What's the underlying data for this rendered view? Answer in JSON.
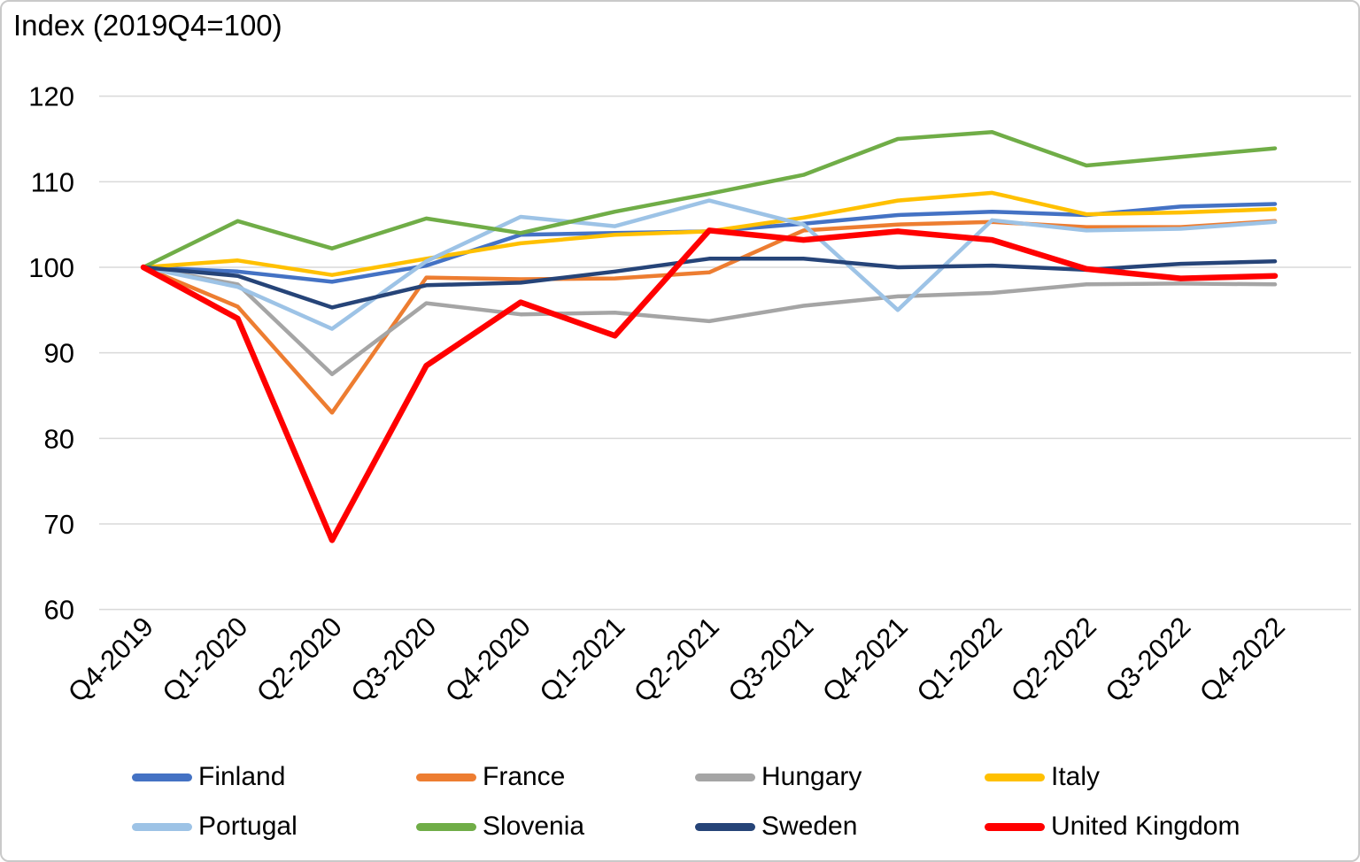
{
  "chart_data": {
    "type": "line",
    "title": "Index (2019Q4=100)",
    "categories": [
      "Q4-2019",
      "Q1-2020",
      "Q2-2020",
      "Q3-2020",
      "Q4-2020",
      "Q1-2021",
      "Q2-2021",
      "Q3-2021",
      "Q4-2021",
      "Q1-2022",
      "Q2-2022",
      "Q3-2022",
      "Q4-2022"
    ],
    "ylim": [
      60,
      120
    ],
    "yticks": [
      60,
      70,
      80,
      90,
      100,
      110,
      120
    ],
    "grid": true,
    "legend_position": "bottom",
    "series": [
      {
        "name": "Finland",
        "color": "#4472C4",
        "line_width": 4.5,
        "values": [
          100,
          99.5,
          98.3,
          100.2,
          103.8,
          104.0,
          104.2,
          105.1,
          106.1,
          106.5,
          106.1,
          107.1,
          107.4
        ]
      },
      {
        "name": "France",
        "color": "#ED7D31",
        "line_width": 4.5,
        "values": [
          100,
          95.4,
          83.0,
          98.8,
          98.6,
          98.7,
          99.4,
          104.3,
          105.0,
          105.3,
          104.7,
          104.7,
          105.4
        ]
      },
      {
        "name": "Hungary",
        "color": "#A5A5A5",
        "line_width": 4.5,
        "values": [
          100,
          98.0,
          87.5,
          95.8,
          94.5,
          94.7,
          93.7,
          95.5,
          96.6,
          97.0,
          98.0,
          98.1,
          98.0
        ]
      },
      {
        "name": "Italy",
        "color": "#FFC000",
        "line_width": 4.5,
        "values": [
          100,
          100.8,
          99.1,
          101.0,
          102.8,
          103.8,
          104.2,
          105.8,
          107.8,
          108.7,
          106.2,
          106.4,
          106.8
        ]
      },
      {
        "name": "Portugal",
        "color": "#9DC3E6",
        "line_width": 4.5,
        "values": [
          100,
          97.7,
          92.8,
          100.7,
          105.9,
          104.8,
          107.8,
          105.0,
          95.0,
          105.5,
          104.3,
          104.5,
          105.3
        ]
      },
      {
        "name": "Slovenia",
        "color": "#70AD47",
        "line_width": 4.5,
        "values": [
          100,
          105.4,
          102.2,
          105.7,
          104.0,
          106.5,
          108.6,
          110.8,
          115.0,
          115.8,
          111.9,
          112.9,
          113.9
        ]
      },
      {
        "name": "Sweden",
        "color": "#264478",
        "line_width": 4.5,
        "values": [
          100,
          99.0,
          95.3,
          97.9,
          98.2,
          99.5,
          101.0,
          101.0,
          100.0,
          100.2,
          99.7,
          100.4,
          100.7
        ]
      },
      {
        "name": "United Kingdom",
        "color": "#FF0000",
        "line_width": 6.5,
        "values": [
          100,
          94.0,
          68.1,
          88.5,
          95.9,
          92.0,
          104.3,
          103.2,
          104.2,
          103.2,
          99.8,
          98.7,
          99.0
        ]
      }
    ],
    "legend": {
      "rows": [
        [
          "Finland",
          "France",
          "Hungary",
          "Italy"
        ],
        [
          "Portugal",
          "Slovenia",
          "Sweden",
          "United Kingdom"
        ]
      ]
    }
  }
}
